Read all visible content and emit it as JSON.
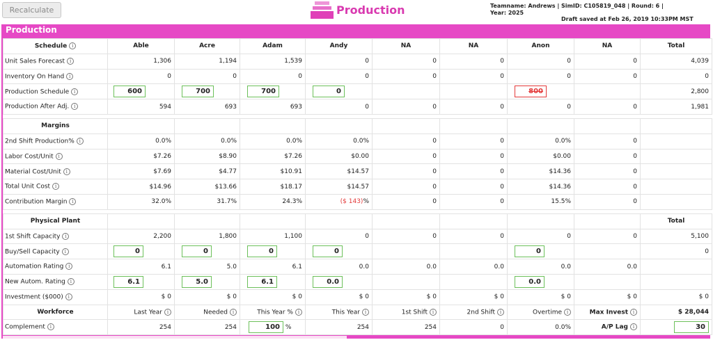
{
  "toolbar": {
    "recalc_label": "Recalculate"
  },
  "header": {
    "title": "Production",
    "team_line": "Teamname: Andrews | SimID: C105819_048 | Round: 6 |",
    "year_line": "Year: 2025",
    "draft_line": "Draft saved at Feb 26, 2019 10:33PM MST"
  },
  "panel": {
    "title": "Production"
  },
  "columns": [
    "Able",
    "Acre",
    "Adam",
    "Andy",
    "NA",
    "NA",
    "Anon",
    "NA",
    "Total"
  ],
  "schedule": {
    "label": "Schedule",
    "unit_sales": {
      "label": "Unit Sales Forecast",
      "values": [
        "1,306",
        "1,194",
        "1,539",
        "0",
        "0",
        "0",
        "0",
        "0",
        "4,039"
      ]
    },
    "inventory": {
      "label": "Inventory On Hand",
      "values": [
        "0",
        "0",
        "0",
        "0",
        "0",
        "0",
        "0",
        "0",
        "0"
      ]
    },
    "prod_schedule": {
      "label": "Production Schedule",
      "inputs": [
        "600",
        "700",
        "700",
        "0",
        "",
        "",
        "800",
        ""
      ],
      "total": "2,800"
    },
    "after_adj": {
      "label": "Production After Adj.",
      "values": [
        "594",
        "693",
        "693",
        "0",
        "0",
        "0",
        "0",
        "0",
        "1,981"
      ]
    }
  },
  "margins": {
    "label": "Margins",
    "second_shift": {
      "label": "2nd Shift Production%",
      "values": [
        "0.0%",
        "0.0%",
        "0.0%",
        "0.0%",
        "0",
        "0",
        "0.0%",
        "0"
      ]
    },
    "labor": {
      "label": "Labor Cost/Unit",
      "values": [
        "$7.26",
        "$8.90",
        "$7.26",
        "$0.00",
        "0",
        "0",
        "$0.00",
        "0"
      ]
    },
    "material": {
      "label": "Material Cost/Unit",
      "values": [
        "$7.69",
        "$4.77",
        "$10.91",
        "$14.57",
        "0",
        "0",
        "$14.36",
        "0"
      ]
    },
    "total_cost": {
      "label": "Total Unit Cost",
      "values": [
        "$14.96",
        "$13.66",
        "$18.17",
        "$14.57",
        "0",
        "0",
        "$14.36",
        "0"
      ]
    },
    "contribution": {
      "label": "Contribution Margin",
      "values": [
        "32.0%",
        "31.7%",
        "24.3%",
        "",
        "0",
        "0",
        "15.5%",
        "0"
      ],
      "andy_neg": "($ 143)",
      "andy_pct": "%"
    }
  },
  "plant": {
    "label": "Physical Plant",
    "total_label": "Total",
    "first_shift": {
      "label": "1st Shift Capacity",
      "values": [
        "2,200",
        "1,800",
        "1,100",
        "0",
        "0",
        "0",
        "0",
        "0",
        "5,100"
      ]
    },
    "buy_sell": {
      "label": "Buy/Sell Capacity",
      "inputs": [
        "0",
        "0",
        "0",
        "0",
        "",
        "",
        "0",
        ""
      ],
      "total": "0"
    },
    "automation": {
      "label": "Automation Rating",
      "values": [
        "6.1",
        "5.0",
        "6.1",
        "0.0",
        "0.0",
        "0.0",
        "0.0",
        "0.0"
      ]
    },
    "new_autom": {
      "label": "New Autom. Rating",
      "inputs": [
        "6.1",
        "5.0",
        "6.1",
        "0.0",
        "",
        "",
        "0.0",
        ""
      ]
    },
    "investment": {
      "label": "Investment ($000)",
      "values": [
        "$ 0",
        "$ 0",
        "$ 0",
        "$ 0",
        "$ 0",
        "$ 0",
        "$ 0",
        "$ 0",
        "$ 0"
      ]
    }
  },
  "workforce": {
    "label": "Workforce",
    "headers": [
      "Last Year",
      "Needed",
      "This Year %",
      "This Year",
      "1st Shift",
      "2nd Shift",
      "Overtime",
      "Max Invest"
    ],
    "max_invest_value": "$ 28,044",
    "complement": {
      "label": "Complement",
      "last_year": "254",
      "needed": "254",
      "this_year_pct": "100",
      "pct_sign": "%",
      "this_year": "254",
      "first_shift": "254",
      "second_shift": "0",
      "overtime": "0.0%"
    },
    "ap_lag": {
      "label": "A/P Lag",
      "value": "30"
    }
  },
  "colors": {
    "accent": "#e649c5",
    "input_border": "#6cc05a",
    "error": "#e33a3a"
  }
}
